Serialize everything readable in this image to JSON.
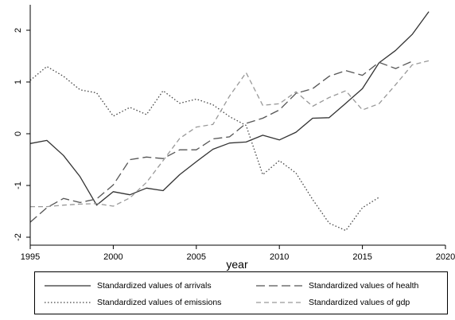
{
  "chart_data": {
    "type": "line",
    "xlabel": "year",
    "ylabel": "",
    "xlim": [
      1995,
      2020
    ],
    "ylim": [
      -2,
      2.5
    ],
    "xticks": [
      "1995",
      "2000",
      "2005",
      "2010",
      "2015",
      "2020"
    ],
    "yticks": [
      "-2",
      "-1",
      "0",
      "1",
      "2"
    ],
    "grid": false,
    "legend_position": "bottom",
    "series": [
      {
        "name": "Standardized values of arrivals",
        "style": "solid",
        "color": "#333333",
        "x": [
          1995,
          1996,
          1997,
          1998,
          1999,
          2000,
          2001,
          2002,
          2003,
          2004,
          2005,
          2006,
          2007,
          2008,
          2009,
          2010,
          2011,
          2012,
          2013,
          2014,
          2015,
          2016,
          2017,
          2018,
          2019
        ],
        "y": [
          -0.19,
          -0.13,
          -0.42,
          -0.83,
          -1.38,
          -1.12,
          -1.18,
          -1.05,
          -1.1,
          -0.79,
          -0.54,
          -0.3,
          -0.18,
          -0.16,
          -0.03,
          -0.12,
          0.03,
          0.3,
          0.31,
          0.59,
          0.87,
          1.37,
          1.61,
          1.92,
          2.36
        ]
      },
      {
        "name": "Standardized values of health",
        "style": "longdash",
        "color": "#555555",
        "x": [
          1995,
          1996,
          1997,
          1998,
          1999,
          2000,
          2001,
          2002,
          2003,
          2004,
          2005,
          2006,
          2007,
          2008,
          2009,
          2010,
          2011,
          2012,
          2013,
          2014,
          2015,
          2016,
          2017,
          2018
        ],
        "y": [
          -1.71,
          -1.43,
          -1.25,
          -1.33,
          -1.26,
          -0.99,
          -0.5,
          -0.45,
          -0.48,
          -0.31,
          -0.31,
          -0.1,
          -0.06,
          0.2,
          0.3,
          0.46,
          0.78,
          0.87,
          1.11,
          1.22,
          1.13,
          1.38,
          1.26,
          1.4
        ]
      },
      {
        "name": "Standardized values of emissions",
        "style": "dotted",
        "color": "#444444",
        "x": [
          1995,
          1996,
          1997,
          1998,
          1999,
          2000,
          2001,
          2002,
          2003,
          2004,
          2005,
          2006,
          2007,
          2008,
          2009,
          2010,
          2011,
          2012,
          2013,
          2014,
          2015,
          2016
        ],
        "y": [
          1.03,
          1.3,
          1.11,
          0.85,
          0.79,
          0.34,
          0.51,
          0.37,
          0.83,
          0.59,
          0.67,
          0.56,
          0.33,
          0.16,
          -0.79,
          -0.52,
          -0.76,
          -1.27,
          -1.73,
          -1.87,
          -1.43,
          -1.23
        ]
      },
      {
        "name": "Standardized values of gdp",
        "style": "dash",
        "color": "#999999",
        "x": [
          1995,
          1996,
          1997,
          1998,
          1999,
          2000,
          2001,
          2002,
          2003,
          2004,
          2005,
          2006,
          2007,
          2008,
          2009,
          2010,
          2011,
          2012,
          2013,
          2014,
          2015,
          2016,
          2017,
          2018,
          2019
        ],
        "y": [
          -1.41,
          -1.41,
          -1.38,
          -1.36,
          -1.35,
          -1.4,
          -1.24,
          -0.94,
          -0.52,
          -0.09,
          0.13,
          0.18,
          0.73,
          1.18,
          0.55,
          0.58,
          0.81,
          0.53,
          0.7,
          0.83,
          0.46,
          0.58,
          0.95,
          1.33,
          1.41
        ]
      }
    ]
  }
}
